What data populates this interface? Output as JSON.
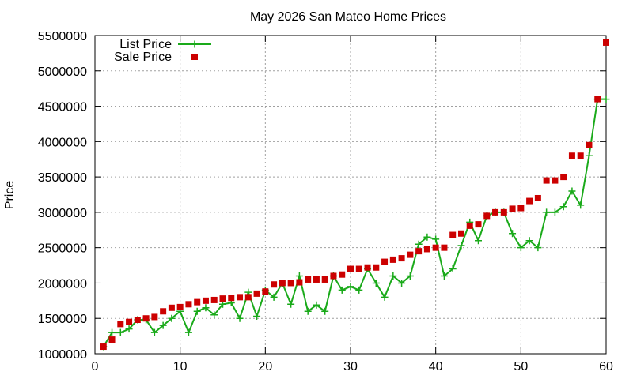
{
  "chart_data": {
    "type": "line",
    "title": "May 2026 San Mateo Home Prices",
    "xlabel": "",
    "ylabel": "Price",
    "xlim": [
      0,
      60
    ],
    "ylim": [
      1000000,
      5500000
    ],
    "xticks": [
      "0",
      "10",
      "20",
      "30",
      "40",
      "50",
      "60"
    ],
    "yticks": [
      "1000000",
      "1500000",
      "2000000",
      "2500000",
      "3000000",
      "3500000",
      "4000000",
      "4500000",
      "5000000",
      "5500000"
    ],
    "grid": true,
    "legend_position": "top-left",
    "x": [
      1,
      2,
      3,
      4,
      5,
      6,
      7,
      8,
      9,
      10,
      11,
      12,
      13,
      14,
      15,
      16,
      17,
      18,
      19,
      20,
      21,
      22,
      23,
      24,
      25,
      26,
      27,
      28,
      29,
      30,
      31,
      32,
      33,
      34,
      35,
      36,
      37,
      38,
      39,
      40,
      41,
      42,
      43,
      44,
      45,
      46,
      47,
      48,
      49,
      50,
      51,
      52,
      53,
      54,
      55,
      56,
      57,
      58,
      59,
      60
    ],
    "series": [
      {
        "name": "List Price",
        "style": "line+plus",
        "color": "#1aaa1a",
        "values": [
          1100000,
          1300000,
          1300000,
          1350000,
          1480000,
          1480000,
          1300000,
          1400000,
          1500000,
          1600000,
          1300000,
          1600000,
          1650000,
          1550000,
          1700000,
          1720000,
          1500000,
          1870000,
          1530000,
          1900000,
          1800000,
          2000000,
          1700000,
          2100000,
          1600000,
          1690000,
          1600000,
          2100000,
          1900000,
          1950000,
          1900000,
          2200000,
          2000000,
          1800000,
          2100000,
          2000000,
          2100000,
          2550000,
          2650000,
          2620000,
          2100000,
          2200000,
          2530000,
          2860000,
          2600000,
          2950000,
          3000000,
          3000000,
          2700000,
          2500000,
          2600000,
          2500000,
          3000000,
          3000000,
          3080000,
          3300000,
          3100000,
          3800000,
          4600000,
          4600000
        ]
      },
      {
        "name": "Sale Price",
        "style": "square",
        "color": "#cc0000",
        "values": [
          1100000,
          1200000,
          1420000,
          1450000,
          1480000,
          1500000,
          1520000,
          1600000,
          1650000,
          1660000,
          1700000,
          1730000,
          1750000,
          1760000,
          1780000,
          1790000,
          1800000,
          1800000,
          1850000,
          1880000,
          1980000,
          2000000,
          2000000,
          2010000,
          2050000,
          2050000,
          2050000,
          2100000,
          2120000,
          2200000,
          2200000,
          2220000,
          2220000,
          2300000,
          2330000,
          2350000,
          2400000,
          2450000,
          2480000,
          2500000,
          2500000,
          2680000,
          2700000,
          2810000,
          2830000,
          2950000,
          3000000,
          3000000,
          3050000,
          3060000,
          3160000,
          3200000,
          3450000,
          3450000,
          3500000,
          3800000,
          3800000,
          3950000,
          4600000,
          5400000
        ]
      }
    ]
  }
}
